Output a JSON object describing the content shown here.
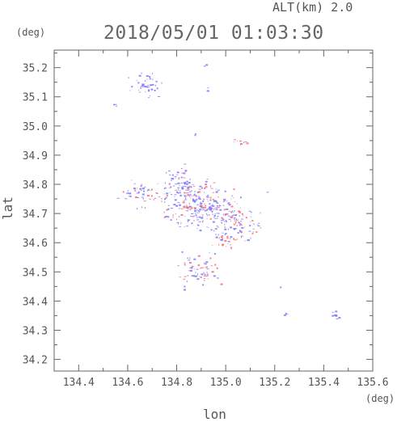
{
  "header": {
    "altitude_label": "ALT(km) 2.0",
    "timestamp": "2018/05/01 01:03:30"
  },
  "chart_data": {
    "type": "scatter",
    "title": "2018/05/01 01:03:30",
    "subtitle": "ALT(km) 2.0",
    "xlabel": "lon",
    "ylabel": "lat",
    "x_unit": "(deg)",
    "y_unit": "(deg)",
    "xlim": [
      134.3,
      135.6
    ],
    "ylim": [
      34.16,
      35.26
    ],
    "x_ticks": [
      134.4,
      134.6,
      134.8,
      135.0,
      135.2,
      135.4,
      135.6
    ],
    "y_ticks": [
      34.2,
      34.3,
      34.4,
      34.5,
      34.6,
      34.7,
      34.8,
      34.9,
      35.0,
      35.1,
      35.2
    ],
    "x_tick_labels": [
      "134.4",
      "134.6",
      "134.8",
      "135.0",
      "135.2",
      "135.4",
      "135.6"
    ],
    "y_tick_labels": [
      "34.2",
      "34.3",
      "34.4",
      "34.5",
      "34.6",
      "34.7",
      "34.8",
      "34.9",
      "35.0",
      "35.1",
      "35.2"
    ],
    "grid": false,
    "colors": {
      "low": "#7a7aff",
      "high": "#ff6a6a"
    },
    "clusters": [
      {
        "lon": 134.67,
        "lat": 35.14,
        "spread_lon": 0.03,
        "spread_lat": 0.02,
        "count": 45,
        "red_ratio": 0.0
      },
      {
        "lon": 134.545,
        "lat": 35.075,
        "spread_lon": 0.005,
        "spread_lat": 0.004,
        "count": 3,
        "red_ratio": 0.0
      },
      {
        "lon": 134.915,
        "lat": 35.21,
        "spread_lon": 0.004,
        "spread_lat": 0.003,
        "count": 3,
        "red_ratio": 0.0
      },
      {
        "lon": 134.925,
        "lat": 35.125,
        "spread_lon": 0.003,
        "spread_lat": 0.006,
        "count": 3,
        "red_ratio": 0.0
      },
      {
        "lon": 134.875,
        "lat": 34.975,
        "spread_lon": 0.003,
        "spread_lat": 0.003,
        "count": 2,
        "red_ratio": 0.0
      },
      {
        "lon": 135.055,
        "lat": 34.945,
        "spread_lon": 0.012,
        "spread_lat": 0.005,
        "count": 10,
        "red_ratio": 0.6
      },
      {
        "lon": 134.6,
        "lat": 34.77,
        "spread_lon": 0.006,
        "spread_lat": 0.005,
        "count": 6,
        "red_ratio": 0.0
      },
      {
        "lon": 134.67,
        "lat": 34.77,
        "spread_lon": 0.04,
        "spread_lat": 0.02,
        "count": 45,
        "red_ratio": 0.25
      },
      {
        "lon": 134.82,
        "lat": 34.8,
        "spread_lon": 0.03,
        "spread_lat": 0.03,
        "count": 60,
        "red_ratio": 0.1
      },
      {
        "lon": 134.86,
        "lat": 34.73,
        "spread_lon": 0.06,
        "spread_lat": 0.04,
        "count": 170,
        "red_ratio": 0.35
      },
      {
        "lon": 134.96,
        "lat": 34.72,
        "spread_lon": 0.05,
        "spread_lat": 0.03,
        "count": 110,
        "red_ratio": 0.3
      },
      {
        "lon": 135.04,
        "lat": 34.67,
        "spread_lon": 0.04,
        "spread_lat": 0.03,
        "count": 80,
        "red_ratio": 0.25
      },
      {
        "lon": 135.13,
        "lat": 34.66,
        "spread_lon": 0.005,
        "spread_lat": 0.004,
        "count": 3,
        "red_ratio": 0.0
      },
      {
        "lon": 134.99,
        "lat": 34.61,
        "spread_lon": 0.025,
        "spread_lat": 0.018,
        "count": 30,
        "red_ratio": 0.6
      },
      {
        "lon": 134.89,
        "lat": 34.51,
        "spread_lon": 0.04,
        "spread_lat": 0.025,
        "count": 70,
        "red_ratio": 0.35
      },
      {
        "lon": 134.83,
        "lat": 34.445,
        "spread_lon": 0.003,
        "spread_lat": 0.003,
        "count": 2,
        "red_ratio": 0.0
      },
      {
        "lon": 135.245,
        "lat": 34.355,
        "spread_lon": 0.004,
        "spread_lat": 0.003,
        "count": 3,
        "red_ratio": 0.0
      },
      {
        "lon": 135.44,
        "lat": 34.355,
        "spread_lon": 0.01,
        "spread_lat": 0.008,
        "count": 10,
        "red_ratio": 0.0
      },
      {
        "lon": 135.165,
        "lat": 34.775,
        "spread_lon": 0.002,
        "spread_lat": 0.002,
        "count": 1,
        "red_ratio": 0.0
      },
      {
        "lon": 135.22,
        "lat": 34.45,
        "spread_lon": 0.002,
        "spread_lat": 0.002,
        "count": 1,
        "red_ratio": 0.0
      }
    ]
  }
}
